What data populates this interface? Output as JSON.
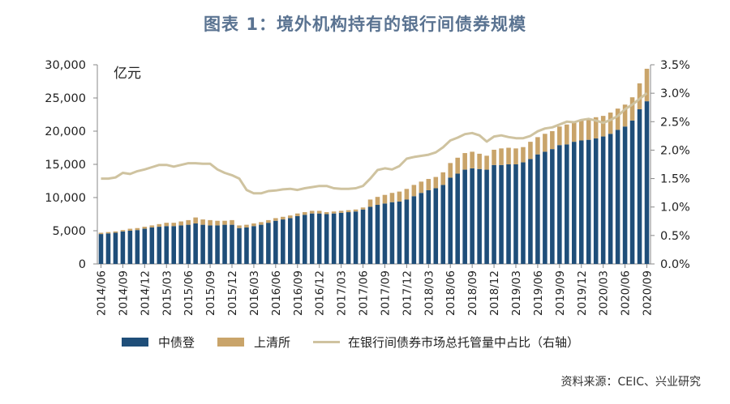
{
  "title": "图表 1：境外机构持有的银行间债券规模",
  "source": "资料来源：CEIC、兴业研究",
  "colors": {
    "ccdc": "#1f4e79",
    "shch": "#c9a46a",
    "ratio": "#cfc3a0",
    "title": "#5a7391"
  },
  "chart_data": {
    "type": "bar",
    "stacked": true,
    "y_unit_label": "亿元",
    "ylim": [
      0,
      30000
    ],
    "y_ticks": [
      "0",
      "5,000",
      "10,000",
      "15,000",
      "20,000",
      "25,000",
      "30,000"
    ],
    "y2lim": [
      0,
      3.5
    ],
    "y2_ticks": [
      "0.0%",
      "0.5%",
      "1.0%",
      "1.5%",
      "2.0%",
      "2.5%",
      "3.0%",
      "3.5%"
    ],
    "x_tick_labels": [
      "2014/06",
      "2014/09",
      "2014/12",
      "2015/03",
      "2015/06",
      "2015/09",
      "2015/12",
      "2016/03",
      "2016/06",
      "2016/09",
      "2016/12",
      "2017/03",
      "2017/06",
      "2017/09",
      "2017/12",
      "2018/03",
      "2018/06",
      "2018/09",
      "2018/12",
      "2019/03",
      "2019/06",
      "2019/09",
      "2019/12",
      "2020/03",
      "2020/06",
      "2020/09"
    ],
    "categories": [
      "2014/06",
      "2014/07",
      "2014/08",
      "2014/09",
      "2014/10",
      "2014/11",
      "2014/12",
      "2015/01",
      "2015/02",
      "2015/03",
      "2015/04",
      "2015/05",
      "2015/06",
      "2015/07",
      "2015/08",
      "2015/09",
      "2015/10",
      "2015/11",
      "2015/12",
      "2016/01",
      "2016/02",
      "2016/03",
      "2016/04",
      "2016/05",
      "2016/06",
      "2016/07",
      "2016/08",
      "2016/09",
      "2016/10",
      "2016/11",
      "2016/12",
      "2017/01",
      "2017/02",
      "2017/03",
      "2017/04",
      "2017/05",
      "2017/06",
      "2017/07",
      "2017/08",
      "2017/09",
      "2017/10",
      "2017/11",
      "2017/12",
      "2018/01",
      "2018/02",
      "2018/03",
      "2018/04",
      "2018/05",
      "2018/06",
      "2018/07",
      "2018/08",
      "2018/09",
      "2018/10",
      "2018/11",
      "2018/12",
      "2019/01",
      "2019/02",
      "2019/03",
      "2019/04",
      "2019/05",
      "2019/06",
      "2019/07",
      "2019/08",
      "2019/09",
      "2019/10",
      "2019/11",
      "2019/12",
      "2020/01",
      "2020/02",
      "2020/03",
      "2020/04",
      "2020/05",
      "2020/06",
      "2020/07",
      "2020/08",
      "2020/09"
    ],
    "series": [
      {
        "name": "中债登",
        "axis": "left",
        "values": [
          4500,
          4600,
          4700,
          4900,
          5000,
          5100,
          5300,
          5500,
          5600,
          5700,
          5700,
          5800,
          5900,
          6100,
          5900,
          5800,
          5800,
          5900,
          5900,
          5400,
          5500,
          5700,
          5900,
          6200,
          6500,
          6700,
          6900,
          7200,
          7400,
          7600,
          7600,
          7500,
          7600,
          7700,
          7800,
          7900,
          8200,
          8600,
          8900,
          9100,
          9300,
          9400,
          9700,
          10200,
          10700,
          11100,
          11400,
          11900,
          13000,
          13600,
          14200,
          14400,
          14300,
          14200,
          14900,
          14900,
          15000,
          15000,
          15300,
          15800,
          16500,
          16900,
          17300,
          17900,
          18000,
          18400,
          18600,
          18700,
          18900,
          19200,
          19600,
          20200,
          20700,
          21600,
          23300,
          24500
        ]
      },
      {
        "name": "上清所",
        "axis": "left",
        "values": [
          200,
          200,
          200,
          200,
          300,
          300,
          300,
          300,
          400,
          500,
          500,
          600,
          700,
          900,
          800,
          800,
          700,
          600,
          700,
          400,
          400,
          400,
          400,
          400,
          400,
          400,
          400,
          400,
          400,
          400,
          400,
          300,
          300,
          300,
          300,
          300,
          300,
          1100,
          1200,
          1300,
          1400,
          1500,
          1600,
          1700,
          1700,
          1700,
          1700,
          1900,
          2200,
          2400,
          2500,
          2500,
          2300,
          2100,
          2300,
          2500,
          2500,
          2400,
          2300,
          2600,
          2600,
          2700,
          2700,
          2800,
          3000,
          2900,
          3000,
          3000,
          3200,
          3100,
          3200,
          3200,
          3300,
          3500,
          3900,
          4900
        ]
      },
      {
        "name": "在银行间债券市场总托管量中占比（右轴）",
        "axis": "right",
        "type": "line",
        "values": [
          1.5,
          1.5,
          1.52,
          1.6,
          1.58,
          1.63,
          1.66,
          1.7,
          1.74,
          1.74,
          1.71,
          1.74,
          1.77,
          1.77,
          1.76,
          1.76,
          1.66,
          1.6,
          1.56,
          1.5,
          1.3,
          1.24,
          1.24,
          1.28,
          1.29,
          1.31,
          1.32,
          1.3,
          1.33,
          1.35,
          1.37,
          1.37,
          1.33,
          1.32,
          1.32,
          1.33,
          1.37,
          1.5,
          1.65,
          1.68,
          1.66,
          1.72,
          1.85,
          1.88,
          1.9,
          1.92,
          1.96,
          2.05,
          2.17,
          2.22,
          2.28,
          2.3,
          2.26,
          2.15,
          2.24,
          2.26,
          2.23,
          2.21,
          2.21,
          2.25,
          2.33,
          2.38,
          2.4,
          2.45,
          2.5,
          2.49,
          2.53,
          2.55,
          2.52,
          2.48,
          2.53,
          2.6,
          2.72,
          2.8,
          2.9,
          3.0
        ]
      }
    ]
  }
}
